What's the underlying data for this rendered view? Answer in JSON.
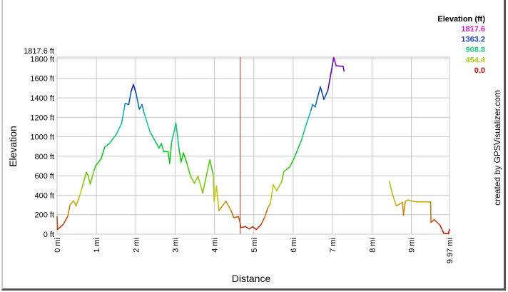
{
  "chart_data": {
    "type": "line",
    "xlabel": "Distance",
    "ylabel": "Elevation",
    "xlim": [
      0,
      9.97
    ],
    "ylim": [
      0,
      1817.6
    ],
    "grid": true,
    "x_ticks": [
      {
        "value": 0,
        "label": "0 mi"
      },
      {
        "value": 1,
        "label": "1 mi"
      },
      {
        "value": 2,
        "label": "2 mi"
      },
      {
        "value": 3,
        "label": "3 mi"
      },
      {
        "value": 4,
        "label": "4 mi"
      },
      {
        "value": 5,
        "label": "5 mi"
      },
      {
        "value": 6,
        "label": "6 mi"
      },
      {
        "value": 7,
        "label": "7 mi"
      },
      {
        "value": 8,
        "label": "8 mi"
      },
      {
        "value": 9,
        "label": "9 mi"
      },
      {
        "value": 9.97,
        "label": "9.97 mi"
      }
    ],
    "y_ticks": [
      {
        "value": 0,
        "label": "0 ft"
      },
      {
        "value": 200,
        "label": "200 ft"
      },
      {
        "value": 400,
        "label": "400 ft"
      },
      {
        "value": 600,
        "label": "600 ft"
      },
      {
        "value": 800,
        "label": "800 ft"
      },
      {
        "value": 1000,
        "label": "1000 ft"
      },
      {
        "value": 1200,
        "label": "1200 ft"
      },
      {
        "value": 1400,
        "label": "1400 ft"
      },
      {
        "value": 1600,
        "label": "1600 ft"
      },
      {
        "value": 1800,
        "label": "1800 ft"
      },
      {
        "value": 1817.6,
        "label": "1817.6 ft"
      }
    ],
    "marker_line": {
      "x": 4.65,
      "color": "#e03030"
    },
    "legend": {
      "title": "Elevation (ft)",
      "placement": "top-right",
      "entries": [
        {
          "label": "1817.6",
          "color": "#d020d0"
        },
        {
          "label": "1363.2",
          "color": "#2048d0"
        },
        {
          "label": "908.8",
          "color": "#20d080"
        },
        {
          "label": "454.4",
          "color": "#a8d020"
        },
        {
          "label": "0.0",
          "color": "#e00000"
        }
      ]
    },
    "series": [
      {
        "x": [
          0,
          0.01,
          0.15,
          0.27,
          0.33,
          0.42,
          0.48,
          0.55,
          0.64,
          0.74,
          0.79,
          0.84,
          0.94,
          0.98,
          1.12,
          1.21,
          1.33,
          1.51,
          1.64,
          1.73,
          1.82,
          1.88,
          1.94,
          2.01,
          2.09,
          2.16,
          2.21,
          2.36,
          2.51,
          2.59,
          2.65,
          2.71,
          2.82,
          2.86,
          2.91,
          3.02,
          3.1,
          3.15,
          3.21,
          3.3,
          3.39,
          3.49,
          3.58,
          3.7,
          3.88,
          3.97,
          3.99,
          4.05,
          4.11,
          4.29,
          4.42,
          4.49,
          4.61,
          4.65,
          4.67,
          4.79,
          4.88,
          4.97,
          5.06,
          5.18,
          5.27,
          5.35,
          5.42,
          5.49,
          5.58,
          5.7,
          5.76,
          5.91,
          6.03,
          6.21,
          6.3,
          6.36,
          6.45,
          6.49,
          6.56,
          6.61,
          6.69,
          6.78,
          6.88,
          7.03,
          7.09,
          7.27,
          7.29
        ],
        "y": [
          181,
          48,
          97,
          181,
          302,
          343,
          290,
          363,
          484,
          634,
          605,
          513,
          653,
          702,
          774,
          895,
          931,
          1028,
          1137,
          1343,
          1330,
          1463,
          1536,
          1439,
          1282,
          1330,
          1246,
          1052,
          943,
          883,
          931,
          847,
          847,
          726,
          943,
          1139,
          871,
          740,
          834,
          726,
          595,
          522,
          595,
          423,
          762,
          605,
          338,
          496,
          242,
          338,
          242,
          169,
          181,
          116,
          68,
          77,
          53,
          77,
          48,
          97,
          169,
          266,
          314,
          508,
          448,
          532,
          641,
          689,
          786,
          967,
          1089,
          1161,
          1270,
          1330,
          1306,
          1391,
          1512,
          1384,
          1476,
          1814,
          1729,
          1722,
          1674
        ]
      },
      {
        "x": [
          8.44,
          8.52,
          8.62,
          8.78,
          8.8,
          8.85,
          8.91,
          9.12,
          9.49,
          9.5,
          9.58,
          9.73,
          9.82,
          9.94,
          9.97
        ],
        "y": [
          544,
          411,
          290,
          327,
          194,
          339,
          351,
          331,
          331,
          121,
          150,
          92,
          12,
          5,
          48
        ]
      }
    ]
  },
  "credit": "created by GPSVisualizer.com"
}
